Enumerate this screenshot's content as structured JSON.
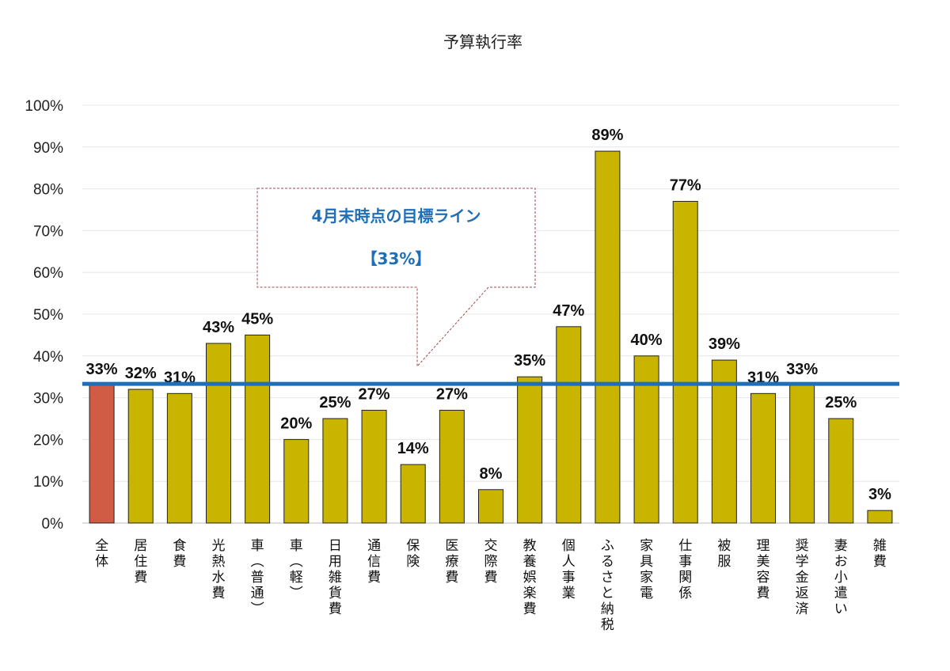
{
  "chart_data": {
    "type": "bar",
    "title": "予算執行率",
    "xlabel": "",
    "ylabel": "",
    "ylim": [
      0,
      1
    ],
    "yticks": [
      "0%",
      "10%",
      "20%",
      "30%",
      "40%",
      "50%",
      "60%",
      "70%",
      "80%",
      "90%",
      "100%"
    ],
    "grid": true,
    "categories": [
      "全体",
      "居住費",
      "食費",
      "光熱水費",
      "車（普通）",
      "車（軽）",
      "日用雑貨費",
      "通信費",
      "保険",
      "医療費",
      "交際費",
      "教養娯楽費",
      "個人事業",
      "ふるさと納税",
      "家具家電",
      "仕事関係",
      "被服",
      "理美容費",
      "奨学金返済",
      "妻お小遣い",
      "雑費"
    ],
    "values": [
      0.33,
      0.32,
      0.31,
      0.43,
      0.45,
      0.2,
      0.25,
      0.27,
      0.14,
      0.27,
      0.08,
      0.35,
      0.47,
      0.89,
      0.4,
      0.77,
      0.39,
      0.31,
      0.33,
      0.25,
      0.03
    ],
    "data_labels": [
      "33%",
      "32%",
      "31%",
      "43%",
      "45%",
      "20%",
      "25%",
      "27%",
      "14%",
      "27%",
      "8%",
      "35%",
      "47%",
      "89%",
      "40%",
      "77%",
      "39%",
      "31%",
      "33%",
      "25%",
      "3%"
    ],
    "highlight_index": 0,
    "colors": {
      "bar": "#c9b400",
      "bar_highlight": "#d15c45",
      "bar_stroke": "#222222",
      "label_highlight": "#e60000",
      "target_line": "#1f6fb8",
      "grid": "#e6e6e6",
      "callout_border": "#a04a4a"
    },
    "target_line": {
      "value": 0.333
    },
    "callout": {
      "line1": "4月末時点の目標ライン",
      "line2": "【33%】"
    }
  }
}
